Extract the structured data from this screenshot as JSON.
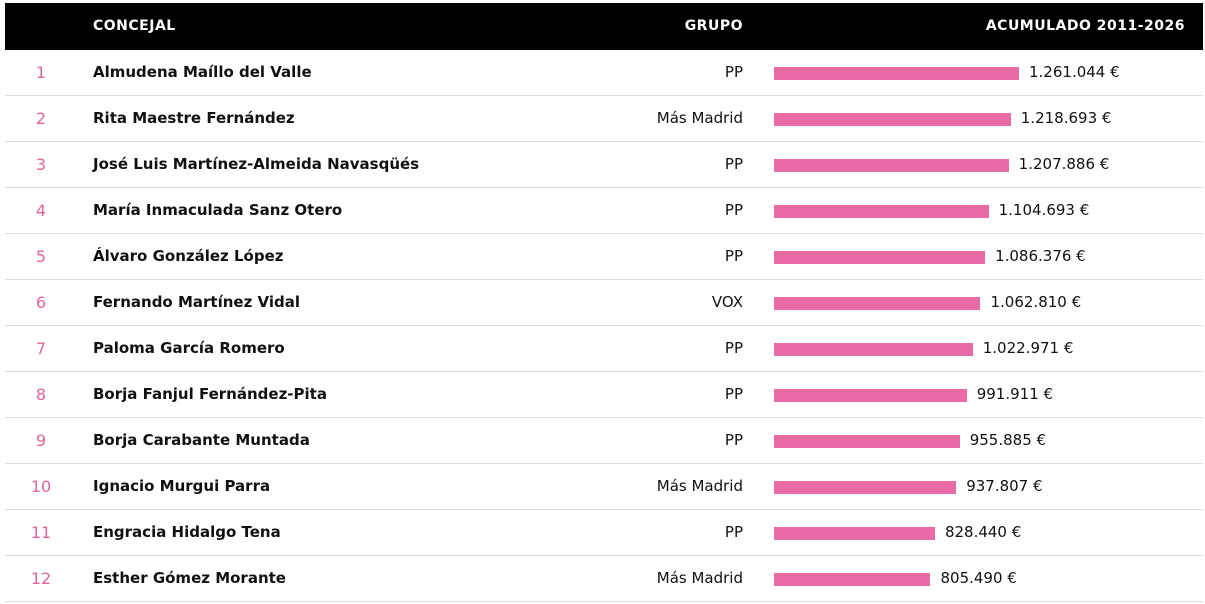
{
  "table": {
    "headers": [
      "CONCEJAL",
      "GRUPO",
      "ACUMULADO 2011-2026"
    ],
    "rows": [
      {
        "rank": 1,
        "name": "Almudena Maíllo del Valle",
        "group": "PP",
        "amount": 1261044,
        "amount_label": "1.261.044 €"
      },
      {
        "rank": 2,
        "name": "Rita Maestre Fernández",
        "group": "Más Madrid",
        "amount": 1218693,
        "amount_label": "1.218.693 €"
      },
      {
        "rank": 3,
        "name": "José Luis Martínez-Almeida Navasqüés",
        "group": "PP",
        "amount": 1207886,
        "amount_label": "1.207.886 €"
      },
      {
        "rank": 4,
        "name": "María Inmaculada Sanz Otero",
        "group": "PP",
        "amount": 1104693,
        "amount_label": "1.104.693 €"
      },
      {
        "rank": 5,
        "name": "Álvaro González López",
        "group": "PP",
        "amount": 1086376,
        "amount_label": "1.086.376 €"
      },
      {
        "rank": 6,
        "name": "Fernando Martínez Vidal",
        "group": "VOX",
        "amount": 1062810,
        "amount_label": "1.062.810 €"
      },
      {
        "rank": 7,
        "name": "Paloma García Romero",
        "group": "PP",
        "amount": 1022971,
        "amount_label": "1.022.971 €"
      },
      {
        "rank": 8,
        "name": "Borja Fanjul Fernández-Pita",
        "group": "PP",
        "amount": 991911,
        "amount_label": "991.911 €"
      },
      {
        "rank": 9,
        "name": "Borja Carabante Muntada",
        "group": "PP",
        "amount": 955885,
        "amount_label": "955.885 €"
      },
      {
        "rank": 10,
        "name": "Ignacio Murgui Parra",
        "group": "Más Madrid",
        "amount": 937807,
        "amount_label": "937.807 €"
      },
      {
        "rank": 11,
        "name": "Engracia Hidalgo Tena",
        "group": "PP",
        "amount": 828440,
        "amount_label": "828.440 €"
      },
      {
        "rank": 12,
        "name": "Esther Gómez Morante",
        "group": "Más Madrid",
        "amount": 805490,
        "amount_label": "805.490 €"
      }
    ]
  }
}
